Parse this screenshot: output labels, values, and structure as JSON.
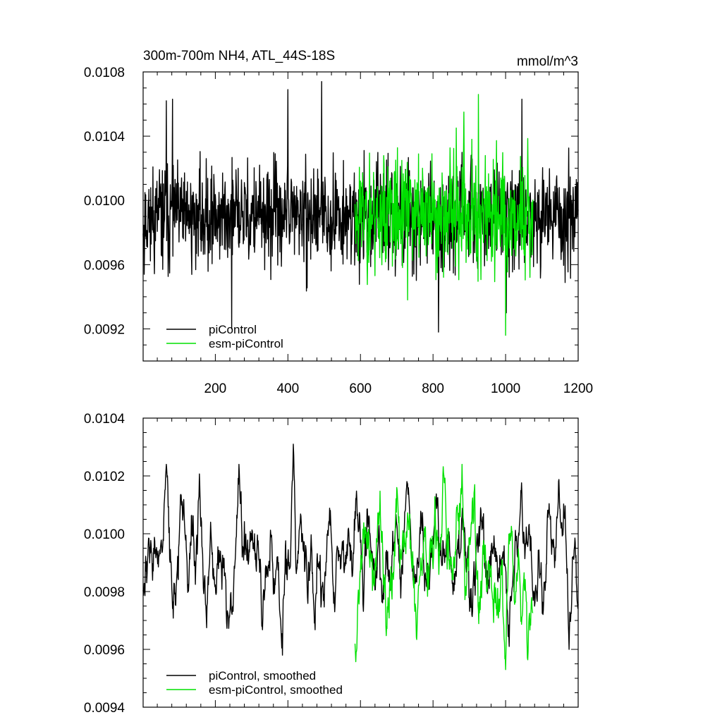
{
  "chart_data": [
    {
      "type": "line",
      "title": "300m-700m NH4, ATL_44S-18S",
      "units": "mmol/m^3",
      "xlim": [
        1,
        1200
      ],
      "ylim": [
        0.009,
        0.0108
      ],
      "x_ticks": [
        200,
        400,
        600,
        800,
        1000,
        1200
      ],
      "x_tick_labels": [
        "200",
        "400",
        "600",
        "800",
        "1000",
        "1200"
      ],
      "y_ticks": [
        0.0092,
        0.0096,
        0.01,
        0.0104,
        0.0108
      ],
      "y_tick_labels": [
        "0.0092",
        "0.0096",
        "0.0100",
        "0.0104",
        "0.0108"
      ],
      "legend_position": "bottom-left",
      "series": [
        {
          "name": "piControl",
          "color": "#000000",
          "x_range": [
            1,
            1200
          ],
          "mean": 0.0099,
          "noise": 0.00026,
          "seed": 11,
          "smoothing": 1,
          "anchors": [
            [
              4,
              0.00954
            ],
            [
              65,
              0.01062
            ],
            [
              82,
              0.01063
            ],
            [
              245,
              0.0092
            ],
            [
              400,
              0.01069
            ],
            [
              493,
              0.01074
            ],
            [
              815,
              0.00918
            ],
            [
              1002,
              0.0093
            ],
            [
              1045,
              0.01063
            ]
          ]
        },
        {
          "name": "esm-piControl",
          "color": "#00e000",
          "x_range": [
            585,
            1075
          ],
          "mean": 0.00992,
          "noise": 0.0003,
          "seed": 23,
          "smoothing": 1,
          "anchors": [
            [
              925,
              0.01066
            ],
            [
              1000,
              0.00916
            ],
            [
              885,
              0.01055
            ],
            [
              730,
              0.00938
            ]
          ]
        }
      ]
    },
    {
      "type": "line",
      "title": "",
      "xlim": [
        1,
        1200
      ],
      "ylim": [
        0.0094,
        0.0104
      ],
      "x_ticks": [
        200,
        400,
        600,
        800,
        1000,
        1200
      ],
      "y_ticks": [
        0.0094,
        0.0096,
        0.0098,
        0.01,
        0.0102,
        0.0104
      ],
      "y_tick_labels": [
        "0.0094",
        "0.0096",
        "0.0098",
        "0.0100",
        "0.0102",
        "0.0104"
      ],
      "legend_position": "bottom-left",
      "series": [
        {
          "name": "piControl, smoothed",
          "color": "#000000",
          "x_range": [
            1,
            1200
          ],
          "mean": 0.00992,
          "noise": 0.00028,
          "seed": 37,
          "smoothing": 5,
          "anchors": [
            [
              65,
              0.01024
            ],
            [
              265,
              0.01024
            ],
            [
              385,
              0.00958
            ],
            [
              415,
              0.01031
            ],
            [
              590,
              0.01012
            ],
            [
              1010,
              0.00961
            ],
            [
              1045,
              0.01014
            ],
            [
              1175,
              0.0096
            ],
            [
              1195,
              0.00983
            ]
          ]
        },
        {
          "name": "esm-piControl, smoothed",
          "color": "#00e000",
          "x_range": [
            585,
            1075
          ],
          "mean": 0.0099,
          "noise": 0.0003,
          "seed": 53,
          "smoothing": 5,
          "anchors": [
            [
              880,
              0.01024
            ],
            [
              915,
              0.01017
            ],
            [
              1000,
              0.00953
            ],
            [
              1060,
              0.00957
            ],
            [
              830,
              0.0102
            ],
            [
              700,
              0.01016
            ]
          ]
        }
      ]
    }
  ]
}
